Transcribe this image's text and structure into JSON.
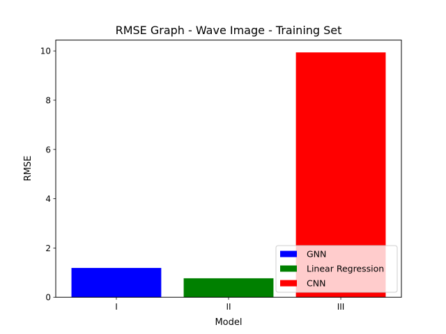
{
  "chart_data": {
    "type": "bar",
    "title": "RMSE Graph - Wave Image - Training Set",
    "xlabel": "Model",
    "ylabel": "RMSE",
    "categories": [
      "I",
      "II",
      "III"
    ],
    "values": [
      1.19,
      0.77,
      9.94
    ],
    "bar_colors": [
      "#0000ff",
      "#008000",
      "#ff0000"
    ],
    "ylim": [
      0,
      10.44
    ],
    "yticks": [
      0,
      2,
      4,
      6,
      8,
      10
    ],
    "grid": false,
    "legend": {
      "placement": "lower-right",
      "entries": [
        {
          "label": "GNN",
          "color": "#0000ff"
        },
        {
          "label": "Linear Regression",
          "color": "#008000"
        },
        {
          "label": "CNN",
          "color": "#ff0000"
        }
      ]
    }
  }
}
